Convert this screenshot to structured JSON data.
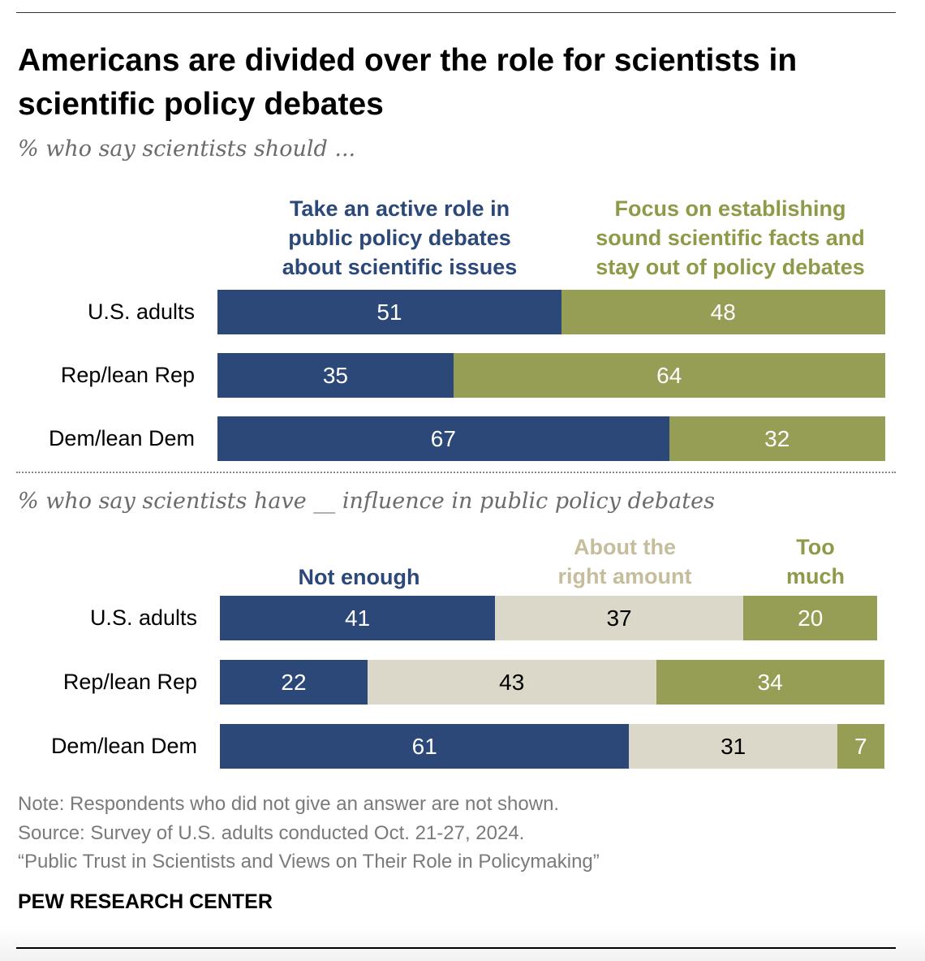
{
  "title": "Americans are divided over the role for scientists in scientific policy debates",
  "colors": {
    "blue": "#2b4878",
    "olive": "#969d55",
    "beige": "#dbd8c9",
    "olive_text": "#8f9a48",
    "beige_text": "#c5bd9c"
  },
  "chart_data": [
    {
      "type": "bar",
      "orientation": "horizontal-stacked",
      "subtitle": "% who say scientists should ...",
      "categories": [
        "U.S. adults",
        "Rep/lean Rep",
        "Dem/lean Dem"
      ],
      "series": [
        {
          "name": "Take an active role in public policy debates about scientific issues",
          "values": [
            51,
            35,
            67
          ],
          "color": "#2b4878"
        },
        {
          "name": "Focus on establishing sound scientific facts and stay out of policy debates",
          "values": [
            48,
            64,
            32
          ],
          "color": "#969d55"
        }
      ]
    },
    {
      "type": "bar",
      "orientation": "horizontal-stacked",
      "subtitle": "% who say scientists have __ influence in public policy debates",
      "categories": [
        "U.S. adults",
        "Rep/lean Rep",
        "Dem/lean Dem"
      ],
      "series": [
        {
          "name": "Not enough",
          "values": [
            41,
            22,
            61
          ],
          "color": "#2b4878"
        },
        {
          "name": "About the right amount",
          "values": [
            37,
            43,
            31
          ],
          "color": "#dbd8c9"
        },
        {
          "name": "Too much",
          "values": [
            20,
            34,
            7
          ],
          "color": "#969d55"
        }
      ]
    }
  ],
  "headers1": [
    "Take an active role in\npublic policy debates\nabout scientific issues",
    "Focus on establishing\nsound scientific facts and\nstay out of policy debates"
  ],
  "headers2": [
    "Not enough",
    "About the\nright amount",
    "Too\nmuch"
  ],
  "note": "Note: Respondents who did not give an answer are not shown.",
  "source": "Source: Survey of U.S. adults conducted Oct. 21-27, 2024.",
  "report": "“Public Trust in Scientists and Views on Their Role in Policymaking”",
  "brand": "PEW RESEARCH CENTER"
}
